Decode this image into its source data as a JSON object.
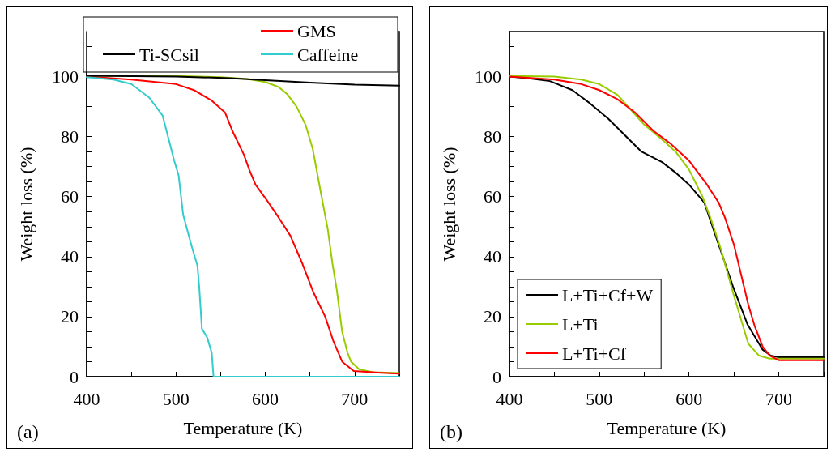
{
  "chart_data": [
    {
      "type": "line",
      "xlabel": "Temperature (K)",
      "ylabel": "Weight loss (%)",
      "annotations": [
        "(a)"
      ],
      "xlim": [
        400,
        750
      ],
      "ylim": [
        0,
        115
      ],
      "xticks": [
        400,
        {
          "value": 450,
          "label": null
        },
        500,
        {
          "value": 550,
          "label": null
        },
        600,
        {
          "value": 650,
          "label": null
        },
        700,
        {
          "value": 750,
          "label": null
        }
      ],
      "yticks": [
        0,
        {
          "value": 5,
          "label": null
        },
        {
          "value": 10,
          "label": null
        },
        {
          "value": 15,
          "label": null
        },
        20,
        {
          "value": 25,
          "label": null
        },
        {
          "value": 30,
          "label": null
        },
        {
          "value": 35,
          "label": null
        },
        40,
        {
          "value": 45,
          "label": null
        },
        {
          "value": 50,
          "label": null
        },
        {
          "value": 55,
          "label": null
        },
        60,
        {
          "value": 65,
          "label": null
        },
        {
          "value": 70,
          "label": null
        },
        {
          "value": 75,
          "label": null
        },
        80,
        {
          "value": 85,
          "label": null
        },
        {
          "value": 90,
          "label": null
        },
        {
          "value": 95,
          "label": null
        },
        100,
        {
          "value": 105,
          "label": null
        },
        {
          "value": 110,
          "label": null
        },
        {
          "value": 115,
          "label": null
        }
      ],
      "grid": false,
      "legend": "top",
      "marker": "none",
      "line_style": "solid",
      "series": [
        {
          "color": "#99cc00",
          "x": [
            400,
            500,
            550,
            580,
            600,
            615,
            625,
            635,
            645,
            653,
            663,
            670,
            675,
            680,
            686,
            692,
            696,
            705,
            720,
            750
          ],
          "values": [
            100.3,
            100.2,
            99.8,
            99.2,
            98.2,
            96.5,
            94,
            90,
            84,
            76,
            60,
            49,
            38,
            29,
            15,
            8,
            5,
            2.5,
            1.5,
            1.2
          ]
        },
        {
          "name": "GMS",
          "color": "#ff0000",
          "x": [
            400,
            450,
            500,
            520,
            540,
            555,
            563,
            576,
            582,
            589,
            602,
            615,
            628,
            641,
            654,
            667,
            676,
            686,
            699,
            730,
            750
          ],
          "values": [
            100,
            99,
            97.5,
            95.5,
            92,
            88,
            82,
            74,
            69,
            64,
            58.7,
            53,
            47,
            38,
            28,
            20,
            12,
            5,
            1.9,
            1.3,
            1.0
          ]
        },
        {
          "name": "Ti-SCsil",
          "color": "#000000",
          "x": [
            400,
            500,
            560,
            600,
            650,
            700,
            750
          ],
          "values": [
            100.3,
            100,
            99.5,
            98.8,
            98,
            97.3,
            97
          ]
        },
        {
          "name": "Caffeine",
          "color": "#33cccc",
          "x": [
            400,
            430,
            450,
            470,
            485,
            498,
            503,
            508,
            518,
            524,
            526,
            529,
            535,
            540,
            542,
            750
          ],
          "values": [
            99.8,
            99,
            97.5,
            93,
            87,
            72,
            67,
            54,
            43,
            37,
            30,
            16,
            13,
            8,
            0,
            0
          ]
        }
      ]
    },
    {
      "type": "line",
      "xlabel": "Temperature (K)",
      "ylabel": "Weight loss (%)",
      "annotations": [
        "(b)"
      ],
      "xlim": [
        400,
        750
      ],
      "ylim": [
        0,
        115
      ],
      "xticks": [
        400,
        {
          "value": 450,
          "label": null
        },
        500,
        {
          "value": 550,
          "label": null
        },
        600,
        {
          "value": 650,
          "label": null
        },
        700,
        {
          "value": 750,
          "label": null
        }
      ],
      "yticks": [
        0,
        {
          "value": 5,
          "label": null
        },
        {
          "value": 10,
          "label": null
        },
        {
          "value": 15,
          "label": null
        },
        20,
        {
          "value": 25,
          "label": null
        },
        {
          "value": 30,
          "label": null
        },
        {
          "value": 35,
          "label": null
        },
        40,
        {
          "value": 45,
          "label": null
        },
        {
          "value": 50,
          "label": null
        },
        {
          "value": 55,
          "label": null
        },
        60,
        {
          "value": 65,
          "label": null
        },
        {
          "value": 70,
          "label": null
        },
        {
          "value": 75,
          "label": null
        },
        80,
        {
          "value": 85,
          "label": null
        },
        {
          "value": 90,
          "label": null
        },
        {
          "value": 95,
          "label": null
        },
        100,
        {
          "value": 105,
          "label": null
        },
        {
          "value": 110,
          "label": null
        },
        {
          "value": 115,
          "label": null
        }
      ],
      "grid": false,
      "legend": "bottom left",
      "marker": "none",
      "line_style": "solid",
      "series": [
        {
          "name": "L+Ti+Cf+W",
          "color": "#000000",
          "x": [
            400,
            420,
            445,
            470,
            490,
            510,
            520,
            547,
            570,
            585,
            600,
            617,
            633,
            649,
            665,
            682,
            691,
            700,
            750
          ],
          "values": [
            100,
            99.5,
            98.5,
            95.5,
            91,
            86,
            83,
            75,
            71.5,
            68,
            64,
            58,
            44,
            30,
            17.5,
            9,
            7,
            6.5,
            6.5
          ]
        },
        {
          "name": "L+Ti",
          "color": "#99cc00",
          "x": [
            400,
            450,
            480,
            500,
            520,
            535,
            550,
            570,
            585,
            600,
            615,
            625,
            635,
            649,
            655,
            666,
            678,
            690,
            700,
            750
          ],
          "values": [
            100.2,
            100,
            99,
            97.5,
            94,
            89,
            84,
            79,
            75,
            69,
            60,
            52,
            43,
            28,
            22,
            11,
            7,
            6,
            6,
            6
          ]
        },
        {
          "name": "L+Ti+Cf",
          "color": "#ff0000",
          "x": [
            400,
            450,
            480,
            500,
            520,
            540,
            560,
            580,
            600,
            610,
            620,
            633,
            640,
            650,
            658,
            666,
            673,
            682,
            690,
            700,
            750
          ],
          "values": [
            100,
            99,
            97.5,
            95.5,
            92.5,
            88,
            82,
            77.5,
            72,
            68,
            64,
            58,
            53,
            44,
            34,
            24,
            17,
            10,
            7,
            5.5,
            5.5
          ]
        }
      ]
    }
  ]
}
